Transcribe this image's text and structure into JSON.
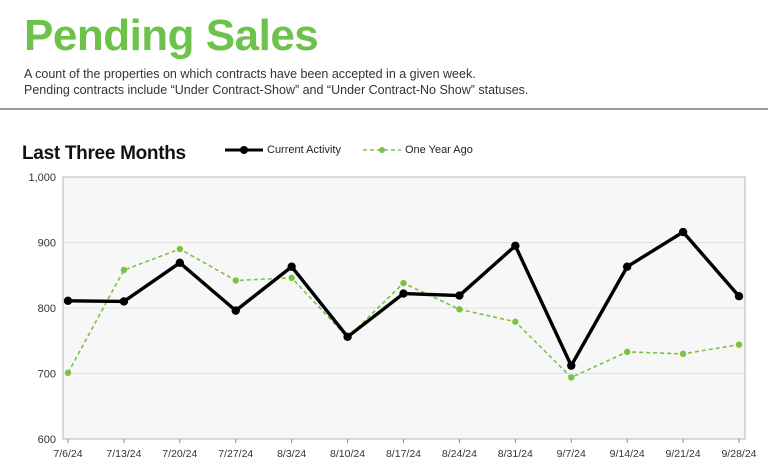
{
  "header": {
    "title": "Pending Sales",
    "description_line1": "A count of the properties on which contracts have been accepted in a given week.",
    "description_line2": "Pending contracts include “Under Contract-Show” and “Under Contract-No Show” statuses."
  },
  "section": {
    "title": "Last Three Months"
  },
  "colors": {
    "title": "#6cc24a",
    "current": "#000000",
    "year_ago": "#7cc242",
    "plot_bg": "#f7f7f7"
  },
  "chart_data": {
    "type": "line",
    "title": "",
    "xlabel": "",
    "ylabel": "",
    "categories": [
      "7/6/24",
      "7/13/24",
      "7/20/24",
      "7/27/24",
      "8/3/24",
      "8/10/24",
      "8/17/24",
      "8/24/24",
      "8/31/24",
      "9/7/24",
      "9/14/24",
      "9/21/24",
      "9/28/24"
    ],
    "ylim": [
      600,
      1000
    ],
    "yticks": [
      600,
      700,
      800,
      900,
      1000
    ],
    "ytick_labels": [
      "600",
      "700",
      "800",
      "900",
      "1,000"
    ],
    "grid": true,
    "legend_position": "top",
    "series": [
      {
        "name": "Current Activity",
        "values": [
          811,
          810,
          869,
          796,
          863,
          756,
          822,
          819,
          895,
          712,
          863,
          916,
          818
        ]
      },
      {
        "name": "One Year Ago",
        "values": [
          701,
          858,
          890,
          842,
          846,
          755,
          838,
          798,
          779,
          694,
          733,
          730,
          744
        ]
      }
    ]
  }
}
